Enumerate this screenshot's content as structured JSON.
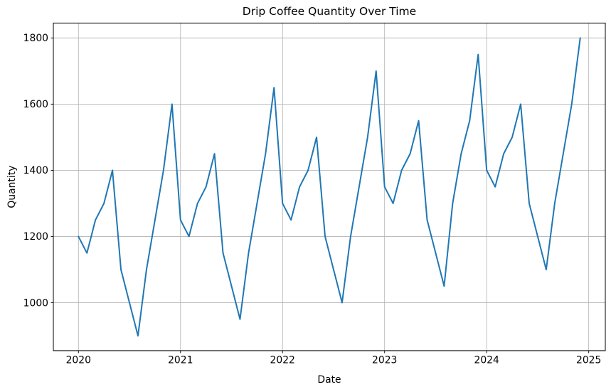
{
  "figure": {
    "background": "#ffffff"
  },
  "chart_data": {
    "type": "line",
    "title": "Drip Coffee Quantity Over Time",
    "xlabel": "Date",
    "ylabel": "Quantity",
    "grid": true,
    "grid_color": "#b0b0b0",
    "line_color": "#1f77b4",
    "line_width": 2,
    "legend_position": "none",
    "x_frequency": "monthly",
    "x": [
      "2020-01",
      "2020-02",
      "2020-03",
      "2020-04",
      "2020-05",
      "2020-06",
      "2020-07",
      "2020-08",
      "2020-09",
      "2020-10",
      "2020-11",
      "2020-12",
      "2021-01",
      "2021-02",
      "2021-03",
      "2021-04",
      "2021-05",
      "2021-06",
      "2021-07",
      "2021-08",
      "2021-09",
      "2021-10",
      "2021-11",
      "2021-12",
      "2022-01",
      "2022-02",
      "2022-03",
      "2022-04",
      "2022-05",
      "2022-06",
      "2022-07",
      "2022-08",
      "2022-09",
      "2022-10",
      "2022-11",
      "2022-12",
      "2023-01",
      "2023-02",
      "2023-03",
      "2023-04",
      "2023-05",
      "2023-06",
      "2023-07",
      "2023-08",
      "2023-09",
      "2023-10",
      "2023-11",
      "2023-12",
      "2024-01",
      "2024-02",
      "2024-03",
      "2024-04",
      "2024-05",
      "2024-06",
      "2024-07",
      "2024-08",
      "2024-09",
      "2024-10",
      "2024-11",
      "2024-12"
    ],
    "series": [
      {
        "name": "Drip Coffee Quantity",
        "values": [
          1200,
          1150,
          1250,
          1300,
          1400,
          1100,
          1000,
          900,
          1100,
          1250,
          1400,
          1600,
          1250,
          1200,
          1300,
          1350,
          1450,
          1150,
          1050,
          950,
          1150,
          1300,
          1450,
          1650,
          1300,
          1250,
          1350,
          1400,
          1500,
          1200,
          1100,
          1000,
          1200,
          1350,
          1500,
          1700,
          1350,
          1300,
          1400,
          1450,
          1550,
          1250,
          1150,
          1050,
          1300,
          1450,
          1550,
          1750,
          1400,
          1350,
          1450,
          1500,
          1600,
          1300,
          1200,
          1100,
          1300,
          1450,
          1600,
          1800
        ]
      }
    ],
    "xticks": [
      "2020",
      "2021",
      "2022",
      "2023",
      "2024",
      "2025"
    ],
    "yticks": [
      "1000",
      "1200",
      "1400",
      "1600",
      "1800"
    ],
    "ylim": [
      855,
      1845
    ],
    "xlim_months": [
      -2.95,
      61.95
    ]
  }
}
